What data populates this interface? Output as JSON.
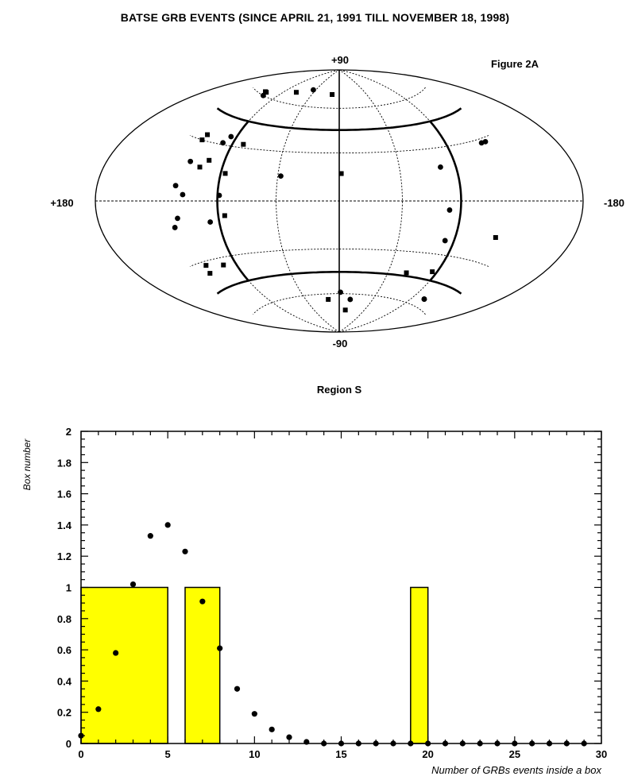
{
  "page": {
    "title": "BATSE GRB EVENTS (SINCE APRIL 21, 1991 TILL NOVEMBER 18, 1998)"
  },
  "sky_map": {
    "figure_label": "Figure 2A",
    "label_top": "+90",
    "label_bottom": "-90",
    "label_left": "+180",
    "label_right": "-180"
  },
  "chart_data": [
    {
      "type": "scatter",
      "title": "Figure 2A",
      "projection": "aitoff-hammer",
      "xlabel": "",
      "ylabel": "",
      "xlim": [
        180,
        -180
      ],
      "ylim": [
        -90,
        90
      ],
      "grid": true,
      "points": [
        {
          "lon": 150,
          "lat": 62,
          "marker": "square"
        },
        {
          "lon": 147,
          "lat": 62,
          "marker": "square"
        },
        {
          "lon": 143,
          "lat": 60,
          "marker": "circle"
        },
        {
          "lon": 96,
          "lat": 68,
          "marker": "square"
        },
        {
          "lon": 66,
          "lat": 72,
          "marker": "circle"
        },
        {
          "lon": 16,
          "lat": 70,
          "marker": "square"
        },
        {
          "lon": 158,
          "lat": 33,
          "marker": "square"
        },
        {
          "lon": 160,
          "lat": 30,
          "marker": "square"
        },
        {
          "lon": 132,
          "lat": 31,
          "marker": "circle"
        },
        {
          "lon": 127,
          "lat": 35,
          "marker": "circle"
        },
        {
          "lon": 107,
          "lat": 32,
          "marker": "square"
        },
        {
          "lon": 160,
          "lat": 19,
          "marker": "circle"
        },
        {
          "lon": 170,
          "lat": 7,
          "marker": "circle"
        },
        {
          "lon": 146,
          "lat": 17,
          "marker": "square"
        },
        {
          "lon": 138,
          "lat": 21,
          "marker": "square"
        },
        {
          "lon": 115,
          "lat": 15,
          "marker": "square"
        },
        {
          "lon": 57,
          "lat": 15,
          "marker": "circle"
        },
        {
          "lon": 160,
          "lat": 3,
          "marker": "circle"
        },
        {
          "lon": 118,
          "lat": 3,
          "marker": "circle"
        },
        {
          "lon": 168,
          "lat": -8,
          "marker": "circle"
        },
        {
          "lon": 174,
          "lat": -12,
          "marker": "circle"
        },
        {
          "lon": 130,
          "lat": -11,
          "marker": "circle"
        },
        {
          "lon": 113,
          "lat": -8,
          "marker": "square"
        },
        {
          "lon": -2,
          "lat": 17,
          "marker": "square"
        },
        {
          "lon": 158,
          "lat": -32,
          "marker": "square"
        },
        {
          "lon": 161,
          "lat": -36,
          "marker": "square"
        },
        {
          "lon": 136,
          "lat": -34,
          "marker": "square"
        },
        {
          "lon": -103,
          "lat": 19,
          "marker": "circle"
        },
        {
          "lon": -164,
          "lat": 28,
          "marker": "circle"
        },
        {
          "lon": -170,
          "lat": 28,
          "marker": "circle"
        },
        {
          "lon": -108,
          "lat": -5,
          "marker": "circle"
        },
        {
          "lon": -110,
          "lat": -22,
          "marker": "circle"
        },
        {
          "lon": -168,
          "lat": -17,
          "marker": "square"
        },
        {
          "lon": -114,
          "lat": -40,
          "marker": "square"
        },
        {
          "lon": -83,
          "lat": -43,
          "marker": "square"
        },
        {
          "lon": -140,
          "lat": -55,
          "marker": "circle"
        },
        {
          "lon": -140,
          "lat": -55,
          "marker": "circle"
        },
        {
          "lon": -2,
          "lat": -59,
          "marker": "circle"
        },
        {
          "lon": 20,
          "lat": -64,
          "marker": "square"
        },
        {
          "lon": -20,
          "lat": -64,
          "marker": "circle"
        },
        {
          "lon": -15,
          "lat": -72,
          "marker": "square"
        }
      ]
    },
    {
      "type": "bar",
      "title": "Region S",
      "xlabel": "Number of GRBs events inside a box",
      "ylabel": "Box number",
      "xlim": [
        0,
        30
      ],
      "ylim": [
        0,
        2
      ],
      "xticks": [
        "0",
        "5",
        "10",
        "15",
        "20",
        "25",
        "30"
      ],
      "yticks": [
        "0",
        "0.2",
        "0.4",
        "0.6",
        "0.8",
        "1",
        "1.2",
        "1.4",
        "1.6",
        "1.8",
        "2"
      ],
      "bar_color": "#ffff00",
      "bars": [
        {
          "x0": 0,
          "x1": 5,
          "value": 1
        },
        {
          "x0": 6,
          "x1": 8,
          "value": 1
        },
        {
          "x0": 19,
          "x1": 20,
          "value": 1
        }
      ],
      "points": [
        {
          "x": 0,
          "y": 0.05
        },
        {
          "x": 1,
          "y": 0.22
        },
        {
          "x": 2,
          "y": 0.58
        },
        {
          "x": 3,
          "y": 1.02
        },
        {
          "x": 4,
          "y": 1.33
        },
        {
          "x": 5,
          "y": 1.4
        },
        {
          "x": 6,
          "y": 1.23
        },
        {
          "x": 7,
          "y": 0.91
        },
        {
          "x": 8,
          "y": 0.61
        },
        {
          "x": 9,
          "y": 0.35
        },
        {
          "x": 10,
          "y": 0.19
        },
        {
          "x": 11,
          "y": 0.09
        },
        {
          "x": 12,
          "y": 0.04
        },
        {
          "x": 13,
          "y": 0.01
        },
        {
          "x": 14,
          "y": 0
        },
        {
          "x": 15,
          "y": 0
        },
        {
          "x": 16,
          "y": 0
        },
        {
          "x": 17,
          "y": 0
        },
        {
          "x": 18,
          "y": 0
        },
        {
          "x": 19,
          "y": 0
        },
        {
          "x": 20,
          "y": 0
        },
        {
          "x": 21,
          "y": 0
        },
        {
          "x": 22,
          "y": 0
        },
        {
          "x": 23,
          "y": 0
        },
        {
          "x": 24,
          "y": 0
        },
        {
          "x": 25,
          "y": 0
        },
        {
          "x": 26,
          "y": 0
        },
        {
          "x": 27,
          "y": 0
        },
        {
          "x": 28,
          "y": 0
        },
        {
          "x": 29,
          "y": 0
        }
      ]
    }
  ]
}
